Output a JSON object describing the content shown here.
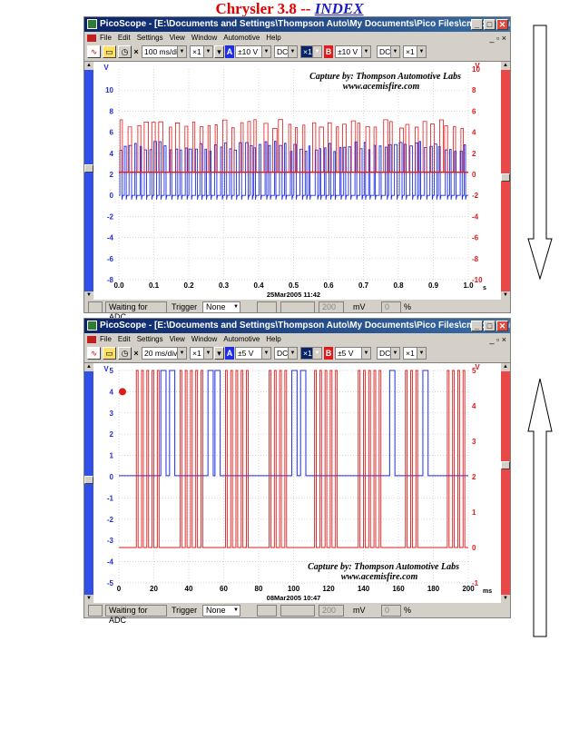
{
  "page": {
    "title_main": "Chrysler 3.8",
    "title_sep": " -- ",
    "title_link": "INDEX"
  },
  "windows": [
    {
      "titlebar": "PicoScope - [E:\\Documents and Settings\\Thompson Auto\\My Documents\\Pico Files\\cmpckp\\chrysler",
      "menu": [
        "File",
        "Edit",
        "Settings",
        "View",
        "Window",
        "Automotive",
        "Help"
      ],
      "toolbar": {
        "timebase": "100 ms/div",
        "mult": "×1",
        "a_label": "A",
        "a_range": "±10 V",
        "a_coupling": "DC",
        "a_mult": "×1",
        "b_label": "B",
        "b_range": "±10 V",
        "b_coupling": "DC",
        "b_mult": "×1"
      },
      "capture_line1": "Capture by: Thompson Automotive Labs",
      "capture_line2": "www.acemisfire.com",
      "timestamp": "25Mar2005  11:42",
      "status": {
        "adc": "Waiting for ADC",
        "trigger_label": "Trigger",
        "trigger_value": "None",
        "level": "200",
        "unit": "mV",
        "pct": "0",
        "pct_unit": "%"
      },
      "chart_data": {
        "type": "line",
        "x_ticks": [
          "0.0",
          "0.1",
          "0.2",
          "0.3",
          "0.4",
          "0.5",
          "0.6",
          "0.7",
          "0.8",
          "0.9",
          "1.0"
        ],
        "x_unit": "s",
        "xlim": [
          0,
          1.0
        ],
        "left_axis_label": "V",
        "left_ticks": [
          "10",
          "8",
          "6",
          "4",
          "2",
          "0",
          "-2",
          "-4",
          "-6",
          "-8"
        ],
        "left_ylim": [
          -8,
          12
        ],
        "right_axis_label": "V",
        "right_ticks": [
          "10",
          "8",
          "6",
          "4",
          "2",
          "0",
          "-2",
          "-4",
          "-6",
          "-8",
          "-10"
        ],
        "right_ylim": [
          -10,
          10
        ],
        "grid": true,
        "series": [
          {
            "color": "#1f2fe0",
            "axis": "left",
            "low": 0,
            "high": 4.9,
            "baseline": 0,
            "count": 70,
            "seed": 7
          },
          {
            "color": "#e01a1a",
            "axis": "right",
            "low": 0,
            "high": 5,
            "baseline": 0.2,
            "count": 44,
            "seed": 3
          }
        ]
      }
    },
    {
      "titlebar": "PicoScope - [E:\\Documents and Settings\\Thompson Auto\\My Documents\\Pico Files\\cmpckp\\chrysler",
      "menu": [
        "File",
        "Edit",
        "Settings",
        "View",
        "Window",
        "Automotive",
        "Help"
      ],
      "toolbar": {
        "timebase": "20 ms/div",
        "mult": "×1",
        "a_label": "A",
        "a_range": "±5 V",
        "a_coupling": "DC",
        "a_mult": "×1",
        "b_label": "B",
        "b_range": "±5 V",
        "b_coupling": "DC",
        "b_mult": "×1"
      },
      "capture_line1": "Capture by: Thompson Automotive Labs",
      "capture_line2": "www.acemisfire.com",
      "timestamp": "08Mar2005  10:47",
      "status": {
        "adc": "Waiting for ADC",
        "trigger_label": "Trigger",
        "trigger_value": "None",
        "level": "200",
        "unit": "mV",
        "pct": "0",
        "pct_unit": "%"
      },
      "chart_data": {
        "type": "line",
        "x_ticks": [
          "0",
          "20",
          "40",
          "60",
          "80",
          "100",
          "120",
          "140",
          "160",
          "180",
          "200"
        ],
        "x_unit": "ms",
        "xlim": [
          0,
          200
        ],
        "left_axis_label": "V",
        "left_ticks": [
          "5",
          "4",
          "3",
          "2",
          "1",
          "0",
          "-1",
          "-2",
          "-3",
          "-4",
          "-5"
        ],
        "left_ylim": [
          -5,
          5
        ],
        "right_axis_label": "V",
        "right_ticks": [
          "5",
          "4",
          "3",
          "2",
          "1",
          "0",
          "-1"
        ],
        "right_ylim": [
          -1,
          5
        ],
        "grid": true,
        "blue_pulses": [
          [
            24,
            27
          ],
          [
            29,
            32
          ],
          [
            51,
            54
          ],
          [
            55,
            58
          ],
          [
            99,
            102
          ],
          [
            104,
            107
          ],
          [
            155,
            158
          ],
          [
            174,
            177
          ]
        ],
        "blue_low": 0.05,
        "blue_high": 5,
        "red_pulses": [
          [
            10,
            11
          ],
          [
            13,
            14
          ],
          [
            16,
            17
          ],
          [
            19,
            20
          ],
          [
            22,
            23
          ],
          [
            35,
            36
          ],
          [
            38,
            39
          ],
          [
            41,
            42
          ],
          [
            44,
            45
          ],
          [
            47,
            48
          ],
          [
            61,
            62
          ],
          [
            64,
            65
          ],
          [
            67,
            68
          ],
          [
            70,
            71
          ],
          [
            73,
            74
          ],
          [
            86,
            87
          ],
          [
            89,
            90
          ],
          [
            92,
            93
          ],
          [
            95,
            96
          ],
          [
            112,
            113
          ],
          [
            115,
            116
          ],
          [
            118,
            119
          ],
          [
            121,
            122
          ],
          [
            124,
            125
          ],
          [
            137,
            138
          ],
          [
            140,
            141
          ],
          [
            143,
            144
          ],
          [
            146,
            147
          ],
          [
            149,
            150
          ],
          [
            164,
            165
          ],
          [
            167,
            168
          ],
          [
            170,
            171
          ],
          [
            188,
            189
          ],
          [
            191,
            192
          ],
          [
            194,
            195
          ],
          [
            197,
            198
          ]
        ],
        "red_low": 0,
        "red_high": 5
      }
    }
  ]
}
